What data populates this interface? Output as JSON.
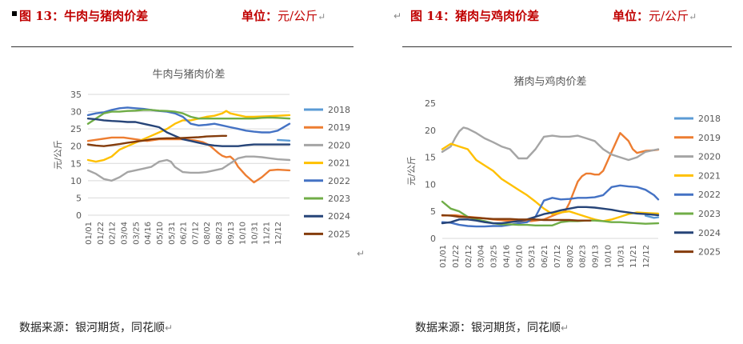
{
  "left": {
    "header": "图 13：牛肉与猪肉价差",
    "unit_label": "单位：",
    "unit_value": "元/公斤",
    "source": "数据来源：银河期货，同花顺",
    "chart_data": {
      "type": "line",
      "title": "牛肉与猪肉价差",
      "ylabel": "元/公斤",
      "ylim": [
        0,
        35
      ],
      "yticks": [
        0,
        5,
        10,
        15,
        20,
        25,
        30,
        35
      ],
      "grid": true,
      "legend": "right",
      "categories": [
        "01/01",
        "01/22",
        "02/12",
        "03/04",
        "03/25",
        "04/16",
        "05/10",
        "05/31",
        "06/21",
        "07/12",
        "08/02",
        "08/23",
        "09/13",
        "10/10",
        "10/31",
        "11/21",
        "12/12"
      ],
      "series": [
        {
          "name": "2018",
          "color": "#5b9bd5",
          "x": [
            48,
            51
          ],
          "y": [
            21.8,
            21.6
          ]
        },
        {
          "name": "2019",
          "color": "#ed7d31",
          "x": [
            0,
            3,
            6,
            9,
            12,
            15,
            18,
            21,
            24,
            27,
            29,
            30,
            31,
            32,
            33,
            34,
            35,
            36,
            37,
            38,
            40,
            42,
            44,
            46,
            48,
            51
          ],
          "y": [
            21.5,
            22,
            22.5,
            22.5,
            22,
            21.5,
            22,
            22,
            22,
            21.7,
            21.2,
            20.7,
            20,
            19,
            18,
            17.2,
            16.8,
            17,
            16,
            14,
            11.5,
            9.5,
            11,
            13,
            13.2,
            13
          ]
        },
        {
          "name": "2020",
          "color": "#a5a5a5",
          "x": [
            0,
            2,
            4,
            6,
            8,
            10,
            12,
            14,
            16,
            18,
            20,
            21,
            22,
            24,
            26,
            28,
            30,
            32,
            34,
            36,
            38,
            40,
            42,
            44,
            46,
            48,
            51
          ],
          "y": [
            13,
            12,
            10.5,
            10,
            11,
            12.5,
            13,
            13.5,
            14,
            15.5,
            16,
            15.5,
            14,
            12.5,
            12.3,
            12.3,
            12.5,
            13,
            13.5,
            15,
            16.5,
            17,
            17,
            16.8,
            16.5,
            16.2,
            16
          ]
        },
        {
          "name": "2021",
          "color": "#ffc000",
          "x": [
            0,
            2,
            4,
            6,
            8,
            10,
            12,
            14,
            16,
            18,
            20,
            22,
            24,
            26,
            28,
            30,
            32,
            34,
            35,
            36,
            38,
            40,
            42,
            44,
            46,
            48,
            51
          ],
          "y": [
            16,
            15.5,
            16,
            17,
            19,
            20,
            21,
            22,
            23,
            24,
            25,
            26.5,
            27.5,
            27.5,
            28,
            28.5,
            28.8,
            29.5,
            30.2,
            29.5,
            29,
            28.5,
            28.5,
            28.6,
            28.7,
            28.8,
            29
          ]
        },
        {
          "name": "2022",
          "color": "#4472c4",
          "x": [
            0,
            2,
            4,
            6,
            8,
            10,
            12,
            14,
            16,
            18,
            20,
            22,
            24,
            26,
            28,
            30,
            32,
            34,
            36,
            38,
            40,
            42,
            44,
            46,
            48,
            51
          ],
          "y": [
            29,
            29.5,
            29.8,
            30.5,
            31,
            31.2,
            31,
            30.8,
            30.5,
            30.2,
            30,
            29.5,
            28.5,
            26.5,
            26,
            26.2,
            26.5,
            26,
            25.5,
            25,
            24.5,
            24.2,
            24,
            24,
            24.5,
            26.5
          ]
        },
        {
          "name": "2023",
          "color": "#70ad47",
          "x": [
            0,
            2,
            4,
            6,
            8,
            10,
            12,
            14,
            16,
            18,
            20,
            22,
            24,
            26,
            28,
            30,
            32,
            34,
            36,
            38,
            40,
            42,
            44,
            46,
            48,
            51
          ],
          "y": [
            26.5,
            28,
            29.5,
            30,
            30,
            30.2,
            30.3,
            30.5,
            30.5,
            30.3,
            30.2,
            30,
            29.5,
            28.5,
            28,
            28,
            28,
            28,
            28,
            28,
            28,
            28,
            28.2,
            28.3,
            28.2,
            28
          ]
        },
        {
          "name": "2024",
          "color": "#264478",
          "x": [
            0,
            2,
            4,
            6,
            8,
            10,
            12,
            14,
            16,
            18,
            20,
            22,
            24,
            26,
            28,
            30,
            32,
            34,
            36,
            38,
            40,
            42,
            44,
            46,
            48,
            51
          ],
          "y": [
            28,
            27.8,
            27.5,
            27.3,
            27.2,
            27,
            27,
            26.5,
            26,
            25.5,
            24,
            23,
            22,
            21.5,
            21,
            20.5,
            20.2,
            20,
            20,
            20,
            20.3,
            20.5,
            20.5,
            20.5,
            20.5,
            20.5
          ]
        },
        {
          "name": "2025",
          "color": "#843c0c",
          "x": [
            0,
            2,
            4,
            6,
            8,
            10,
            12,
            14,
            16,
            18,
            20,
            22,
            24,
            26,
            28,
            30,
            32,
            34,
            35
          ],
          "y": [
            20.5,
            20.2,
            20,
            20.3,
            20.6,
            21,
            21.3,
            21.6,
            22,
            22.2,
            22.3,
            22.3,
            22.4,
            22.5,
            22.6,
            22.8,
            22.9,
            23,
            23
          ]
        }
      ]
    }
  },
  "right": {
    "header": "图 14：猪肉与鸡肉价差",
    "unit_label": "单位：",
    "unit_value": "元/公斤",
    "source": "数据来源：银河期货，同花顺",
    "chart_data": {
      "type": "line",
      "title": "猪肉与鸡肉价差",
      "ylabel": "元/公斤",
      "ylim": [
        0,
        25
      ],
      "yticks": [
        0,
        5,
        10,
        15,
        20,
        25
      ],
      "grid": false,
      "legend": "right",
      "categories": [
        "01/01",
        "01/22",
        "02/12",
        "03/04",
        "03/25",
        "04/16",
        "05/10",
        "05/31",
        "06/21",
        "07/12",
        "08/02",
        "08/23",
        "09/13",
        "10/10",
        "10/31",
        "11/21",
        "12/12"
      ],
      "series": [
        {
          "name": "2018",
          "color": "#5b9bd5",
          "x": [
            48,
            50,
            51
          ],
          "y": [
            4.2,
            3.8,
            3.9
          ]
        },
        {
          "name": "2019",
          "color": "#ed7d31",
          "x": [
            0,
            3,
            6,
            9,
            12,
            15,
            18,
            21,
            24,
            27,
            29,
            30,
            31,
            32,
            33,
            34,
            35,
            36,
            37,
            38,
            40,
            42,
            44,
            45,
            46,
            47,
            48,
            50,
            51
          ],
          "y": [
            4.2,
            4.3,
            4,
            3.8,
            3.5,
            3.3,
            3.2,
            3.2,
            3.5,
            4.5,
            5,
            6.5,
            8.5,
            10.5,
            11.5,
            12,
            12,
            11.8,
            11.8,
            12.5,
            16,
            19.5,
            18,
            16.5,
            15.8,
            16,
            16.2,
            16.3,
            16.4
          ]
        },
        {
          "name": "2020",
          "color": "#a5a5a5",
          "x": [
            0,
            2,
            3,
            4,
            5,
            6,
            8,
            10,
            12,
            14,
            16,
            18,
            20,
            22,
            24,
            26,
            28,
            30,
            32,
            34,
            36,
            38,
            40,
            42,
            44,
            46,
            48,
            51
          ],
          "y": [
            16,
            17,
            18.5,
            19.8,
            20.5,
            20.3,
            19.5,
            18.5,
            17.8,
            17,
            16.5,
            14.8,
            14.8,
            16.5,
            18.8,
            19,
            18.8,
            18.8,
            19,
            18.5,
            18,
            16.5,
            15.5,
            15,
            14.5,
            15,
            16,
            16.5
          ]
        },
        {
          "name": "2021",
          "color": "#ffc000",
          "x": [
            0,
            2,
            4,
            6,
            8,
            10,
            12,
            14,
            16,
            18,
            20,
            22,
            24,
            26,
            28,
            30,
            32,
            34,
            36,
            38,
            40,
            42,
            44,
            46,
            48,
            51
          ],
          "y": [
            16.5,
            17.5,
            17,
            16.5,
            14.5,
            13.5,
            12.5,
            11,
            10,
            9,
            8,
            6.8,
            5.5,
            4.5,
            4.8,
            5,
            4.5,
            4,
            3.5,
            3.2,
            3.5,
            4,
            4.5,
            4.8,
            4.7,
            4.6
          ]
        },
        {
          "name": "2022",
          "color": "#4472c4",
          "x": [
            0,
            2,
            4,
            6,
            8,
            10,
            12,
            14,
            16,
            18,
            20,
            22,
            24,
            26,
            28,
            30,
            32,
            34,
            36,
            38,
            40,
            42,
            44,
            46,
            48,
            50,
            51
          ],
          "y": [
            3,
            2.9,
            2.5,
            2.3,
            2.2,
            2.2,
            2.3,
            2.3,
            2.5,
            2.8,
            3,
            4,
            7,
            7.5,
            7.2,
            7.3,
            7.5,
            7.5,
            7.6,
            8,
            9.5,
            9.8,
            9.6,
            9.5,
            9,
            8,
            7.2
          ]
        },
        {
          "name": "2023",
          "color": "#70ad47",
          "x": [
            0,
            2,
            4,
            6,
            8,
            10,
            12,
            14,
            16,
            18,
            20,
            22,
            24,
            26,
            28,
            30,
            32,
            34,
            36,
            38,
            40,
            42,
            44,
            46,
            48,
            51
          ],
          "y": [
            6.8,
            5.5,
            5,
            4,
            3.5,
            3.2,
            2.8,
            2.6,
            2.6,
            2.5,
            2.5,
            2.4,
            2.4,
            2.4,
            3,
            3.2,
            3.2,
            3.3,
            3.3,
            3.2,
            3,
            3,
            2.9,
            2.8,
            2.7,
            2.8
          ]
        },
        {
          "name": "2024",
          "color": "#264478",
          "x": [
            0,
            2,
            4,
            6,
            8,
            10,
            12,
            14,
            16,
            18,
            20,
            22,
            24,
            26,
            28,
            30,
            32,
            34,
            36,
            38,
            40,
            42,
            44,
            46,
            48,
            51
          ],
          "y": [
            2.8,
            3,
            3.5,
            3.5,
            3.3,
            3,
            2.8,
            2.8,
            3,
            3.2,
            3.5,
            4,
            4.5,
            4.8,
            5.2,
            5.5,
            5.8,
            5.8,
            5.7,
            5.5,
            5.3,
            5,
            4.8,
            4.6,
            4.5,
            4.3
          ]
        },
        {
          "name": "2025",
          "color": "#843c0c",
          "x": [
            0,
            2,
            4,
            6,
            8,
            10,
            12,
            14,
            16,
            18,
            20,
            22,
            24,
            26,
            28,
            30,
            32,
            34,
            35
          ],
          "y": [
            4.3,
            4.2,
            4,
            3.9,
            3.8,
            3.7,
            3.6,
            3.6,
            3.6,
            3.5,
            3.5,
            3.5,
            3.4,
            3.4,
            3.4,
            3.4,
            3.3,
            3.3,
            3.3
          ]
        }
      ]
    }
  }
}
